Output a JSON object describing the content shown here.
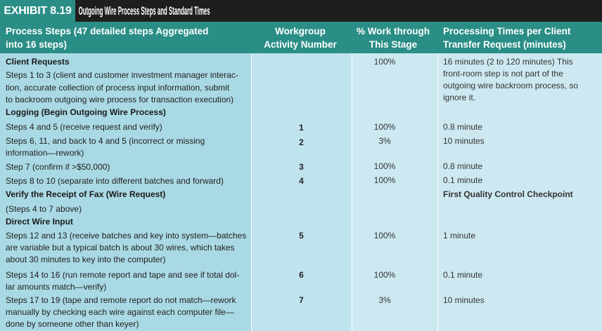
{
  "title": {
    "exhibit": "EXHIBIT 8.19",
    "text": "Outgoing Wire Process Steps and Standard Times"
  },
  "header": {
    "col1_line1": "Process Steps (47 detailed steps Aggregated",
    "col1_line2": "into 16 steps)",
    "col2_line1": "Workgroup",
    "col2_line2": "Activity Number",
    "col3_line1": "% Work through",
    "col3_line2": "This Stage",
    "col4_line1": "Processing Times per Client",
    "col4_line2": "Transfer Request (minutes)"
  },
  "rows": {
    "client_requests": "Client Requests",
    "steps_1_3_l1": "Steps 1 to 3 (client and customer investment manager interac-",
    "steps_1_3_l2": "tion, accurate collection of process input information, submit",
    "steps_1_3_l3": "to backroom outgoing wire process for transaction execution)",
    "steps_1_3_pct": "100%",
    "steps_1_3_time_l1": "16 minutes (2 to 120 minutes) This",
    "steps_1_3_time_l2": "front-room step is not part of the",
    "steps_1_3_time_l3": "outgoing wire backroom process, so",
    "steps_1_3_time_l4": "ignore it.",
    "logging": "Logging (Begin Outgoing Wire Process)",
    "steps_4_5": "Steps 4 and 5 (receive request and verify)",
    "steps_4_5_num": "1",
    "steps_4_5_pct": "100%",
    "steps_4_5_time": "0.8 minute",
    "steps_6_11_l1": "Steps 6, 11, and back to 4 and 5 (incorrect or missing",
    "steps_6_11_l2": "information—rework)",
    "steps_6_11_num": "2",
    "steps_6_11_pct": "3%",
    "steps_6_11_time": "10 minutes",
    "step_7": "Step 7 (confirm if >$50,000)",
    "step_7_num": "3",
    "step_7_pct": "100%",
    "step_7_time": "0.8 minute",
    "steps_8_10": "Steps 8 to 10 (separate into different batches and forward)",
    "steps_8_10_num": "4",
    "steps_8_10_pct": "100%",
    "steps_8_10_time": "0.1 minute",
    "verify_fax": "Verify the Receipt of Fax (Wire Request)",
    "verify_fax_note": "First Quality Control Checkpoint",
    "steps_4_7_above": "(Steps 4 to 7 above)",
    "direct_wire": "Direct Wire Input",
    "steps_12_13_l1": "Steps 12 and 13 (receive batches and key into system—batches",
    "steps_12_13_l2": "are variable but a typical batch is about 30 wires, which takes",
    "steps_12_13_l3": "about 30 minutes to key into the computer)",
    "steps_12_13_num": "5",
    "steps_12_13_pct": "100%",
    "steps_12_13_time": "1 minute",
    "steps_14_16_l1": "Steps 14 to 16 (run remote report and tape and see if total dol-",
    "steps_14_16_l2": "lar amounts match—verify)",
    "steps_14_16_num": "6",
    "steps_14_16_pct": "100%",
    "steps_14_16_time": "0.1 minute",
    "steps_17_19_l1": "Steps 17 to 19 (tape and remote report do not match—rework",
    "steps_17_19_l2": "manually by checking each wire against each computer file—",
    "steps_17_19_l3": "done by someone other than keyer)",
    "steps_17_19_num": "7",
    "steps_17_19_pct": "3%",
    "steps_17_19_time": "10 minutes"
  }
}
